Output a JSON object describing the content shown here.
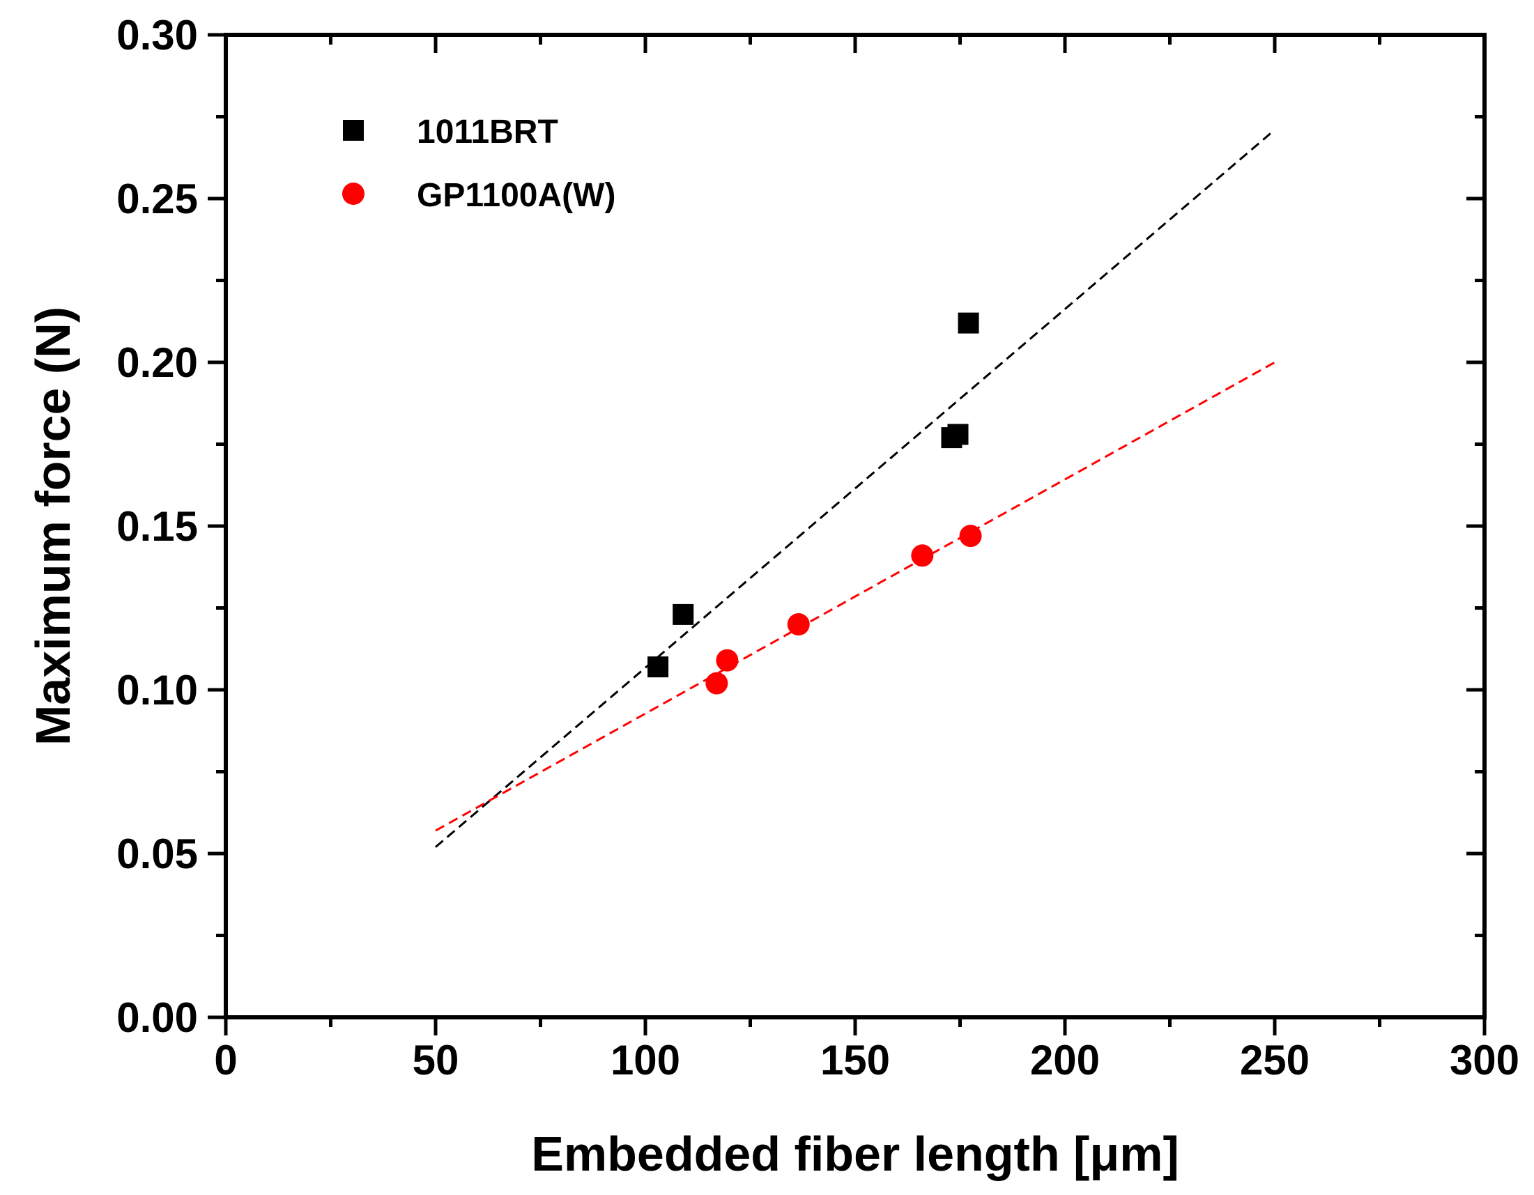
{
  "chart_data": {
    "type": "scatter",
    "title": "",
    "xlabel": "Embedded fiber length [μm]",
    "ylabel": "Maximum force (N)",
    "xlim": [
      0,
      300
    ],
    "ylim": [
      0,
      0.3
    ],
    "x_ticks": [
      0,
      50,
      100,
      150,
      200,
      250,
      300
    ],
    "y_ticks": [
      0.0,
      0.05,
      0.1,
      0.15,
      0.2,
      0.25,
      0.3
    ],
    "x_tick_labels": [
      "0",
      "50",
      "100",
      "150",
      "200",
      "250",
      "300"
    ],
    "y_tick_labels": [
      "0.00",
      "0.05",
      "0.10",
      "0.15",
      "0.20",
      "0.25",
      "0.30"
    ],
    "x_minor_step": 25,
    "y_minor_step": 0.025,
    "grid": false,
    "legend_position": "top-left",
    "series": [
      {
        "name": "1011BRT",
        "marker": "square",
        "color": "#000000",
        "points": [
          [
            103,
            0.107
          ],
          [
            109,
            0.123
          ],
          [
            173,
            0.177
          ],
          [
            174.5,
            0.178
          ],
          [
            177,
            0.212
          ]
        ],
        "fit": {
          "x": [
            50,
            250
          ],
          "y": [
            0.052,
            0.271
          ],
          "color": "#000000",
          "style": "dashed"
        }
      },
      {
        "name": "GP1100A(W)",
        "marker": "circle",
        "color": "#ff0000",
        "points": [
          [
            117,
            0.102
          ],
          [
            119.5,
            0.109
          ],
          [
            136.5,
            0.12
          ],
          [
            166,
            0.141
          ],
          [
            177.5,
            0.147
          ]
        ],
        "fit": {
          "x": [
            50,
            250
          ],
          "y": [
            0.057,
            0.2
          ],
          "color": "#ff0000",
          "style": "dashed"
        }
      }
    ]
  }
}
